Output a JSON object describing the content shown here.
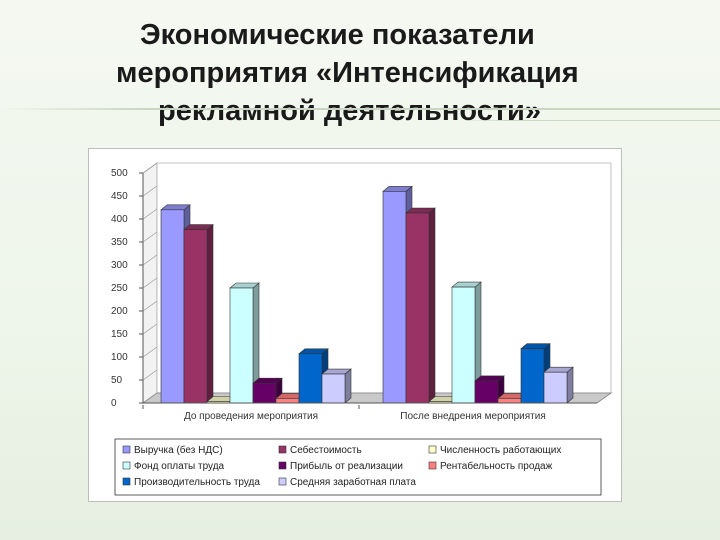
{
  "slide": {
    "title_line1": "Экономические показатели",
    "title_line2": "мероприятия «Интенсификация",
    "title_line3": "рекламной деятельности»"
  },
  "chart_data": {
    "type": "bar",
    "categories": [
      "До проведения мероприятия",
      "После внедрения мероприятия"
    ],
    "series": [
      {
        "name": "Выручка (без НДС)",
        "values": [
          420,
          460
        ],
        "color": "#9999ff"
      },
      {
        "name": "Себестоимость",
        "values": [
          377,
          413
        ],
        "color": "#993366"
      },
      {
        "name": "Численность работающих",
        "values": [
          3,
          3
        ],
        "color": "#ffffcc"
      },
      {
        "name": "Фонд оплаты труда",
        "values": [
          250,
          252
        ],
        "color": "#ccffff"
      },
      {
        "name": "Прибыль от реализации",
        "values": [
          43,
          48
        ],
        "color": "#660066"
      },
      {
        "name": "Рентабельность продаж",
        "values": [
          10,
          10
        ],
        "color": "#ff8080"
      },
      {
        "name": "Производительность труда",
        "values": [
          107,
          118
        ],
        "color": "#0066cc"
      },
      {
        "name": "Средняя заработная плата",
        "values": [
          63,
          67
        ],
        "color": "#ccccff"
      }
    ],
    "ylim": [
      0,
      500
    ],
    "yticks": [
      0,
      50,
      100,
      150,
      200,
      250,
      300,
      350,
      400,
      450,
      500
    ],
    "grid": false,
    "legend_position": "bottom"
  }
}
